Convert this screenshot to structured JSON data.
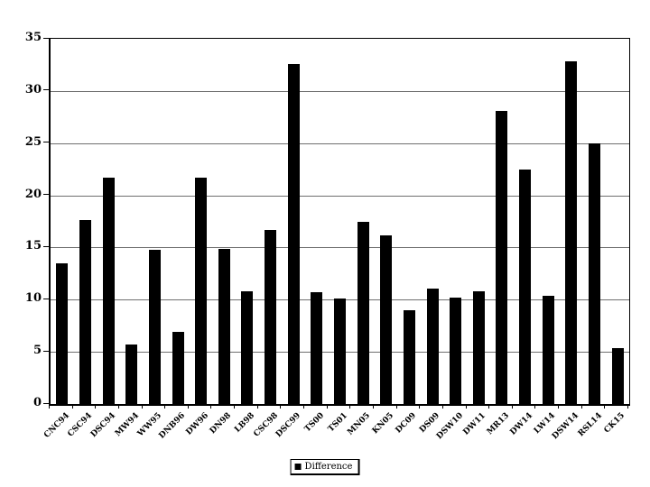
{
  "figure": {
    "background_color": "#ffffff",
    "bar_color": "#000000",
    "gridline_color": "#6e6e6e"
  },
  "legend": {
    "label": "Difference",
    "marker_color": "#000000"
  },
  "chart_data": {
    "type": "bar",
    "title": "",
    "xlabel": "",
    "ylabel": "",
    "categories": [
      "CNC94",
      "CSC94",
      "DSC94",
      "MW94",
      "WW95",
      "DNB96",
      "DW96",
      "DN98",
      "LB98",
      "CSC98",
      "DSC99",
      "TS00",
      "TS01",
      "MN05",
      "KN05",
      "DC09",
      "DS09",
      "DSW10",
      "DW11",
      "MR13",
      "DW14",
      "LW14",
      "DSW14",
      "RSL14",
      "CK15"
    ],
    "series": [
      {
        "name": "Difference",
        "color": "#000000",
        "values": [
          13.5,
          17.6,
          21.7,
          5.7,
          14.8,
          6.9,
          21.7,
          14.9,
          10.8,
          16.7,
          32.6,
          10.7,
          10.1,
          17.5,
          16.2,
          9.0,
          11.1,
          10.2,
          10.8,
          28.1,
          22.5,
          10.4,
          32.8,
          25.0,
          5.4
        ]
      }
    ],
    "ylim": [
      0,
      35
    ],
    "yticks": [
      0,
      5,
      10,
      15,
      20,
      25,
      30,
      35
    ],
    "grid": "horizontal",
    "legend_position": "bottom-center"
  }
}
